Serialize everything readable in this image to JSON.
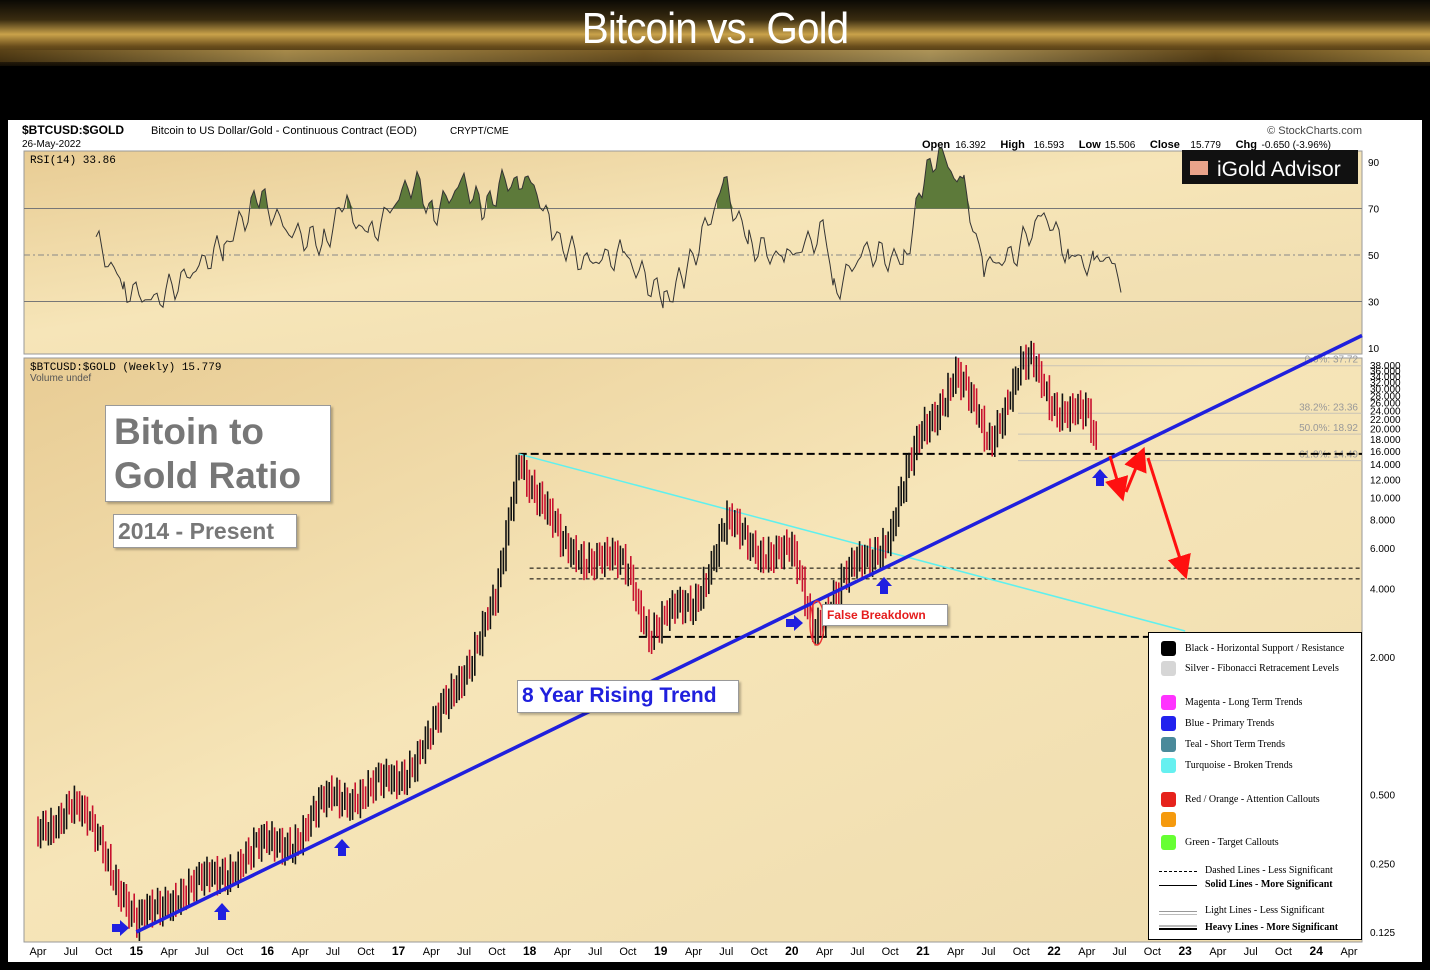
{
  "slide": {
    "title": "Bitcoin vs. Gold"
  },
  "header": {
    "symbol": "$BTCUSD:$GOLD",
    "description": "Bitcoin to US Dollar/Gold - Continuous Contract (EOD)",
    "exchange": "CRYPT/CME",
    "date": "26-May-2022",
    "source": "© StockCharts.com",
    "ohlc": [
      {
        "label": "Open",
        "value": "16.392"
      },
      {
        "label": "High",
        "value": "16.593"
      },
      {
        "label": "Low",
        "value": "15.506"
      },
      {
        "label": "Close",
        "value": "15.779"
      },
      {
        "label": "Chg",
        "value": "-0.650 (-3.96%)"
      }
    ],
    "logo": "iGold Advisor"
  },
  "rsi_panel": {
    "label": "RSI(14) 33.86",
    "ticks": [
      "90",
      "70",
      "50",
      "30",
      "10"
    ],
    "overbought_color": "#5d7a3a"
  },
  "price_panel": {
    "label": "$BTCUSD:$GOLD (Weekly) 15.779",
    "volume_label": "Volume undef",
    "y_ticks": [
      "38.000",
      "36.000",
      "34.000",
      "32.000",
      "30.000",
      "28.000",
      "26.000",
      "24.000",
      "22.000",
      "20.000",
      "18.000",
      "16.000",
      "14.000",
      "12.000",
      "10.000",
      "8.000",
      "6.000",
      "4.000",
      "2.000",
      "0.500",
      "0.250",
      "0.125"
    ],
    "fib_labels": [
      "0.0%: 37.72",
      "38.2%: 23.36",
      "50.0%: 18.92",
      "61.8%: 14.49"
    ]
  },
  "annotations": {
    "box_title_line1": "Bitoin to",
    "box_title_line2": "Gold Ratio",
    "box_period": "2014 - Present",
    "trend_label": "8 Year Rising Trend",
    "false_breakdown": "False Breakdown"
  },
  "x_axis": [
    "Apr",
    "Jul",
    "Oct",
    "15",
    "Apr",
    "Jul",
    "Oct",
    "16",
    "Apr",
    "Jul",
    "Oct",
    "17",
    "Apr",
    "Jul",
    "Oct",
    "18",
    "Apr",
    "Jul",
    "Oct",
    "19",
    "Apr",
    "Jul",
    "Oct",
    "20",
    "Apr",
    "Jul",
    "Oct",
    "21",
    "Apr",
    "Jul",
    "Oct",
    "22",
    "Apr",
    "Jul",
    "Oct",
    "23",
    "Apr",
    "Jul",
    "Oct",
    "24",
    "Apr"
  ],
  "legend": [
    {
      "label": "Black - Horizontal Support / Resistance",
      "color": "#000000"
    },
    {
      "label": "Silver - Fibonacci Retracement Levels",
      "color": "#d6d6d6"
    },
    {
      "label": "Magenta - Long Term Trends",
      "color": "#ff33ff"
    },
    {
      "label": "Blue - Primary Trends",
      "color": "#2222ee"
    },
    {
      "label": "Teal - Short Term Trends",
      "color": "#4a8a9a"
    },
    {
      "label": "Turquoise - Broken Trends",
      "color": "#66f0f0"
    },
    {
      "label": "Red / Orange - Attention Callouts",
      "color": "#e6221c"
    },
    {
      "label": "",
      "color": "#f59a0e"
    },
    {
      "label": "Green - Target Callouts",
      "color": "#66ff33"
    }
  ],
  "legend_lines": [
    {
      "label": "Dashed Lines - Less Significant"
    },
    {
      "label": "Solid Lines - More Significant"
    },
    {
      "label": "Light Lines - Less Significant"
    },
    {
      "label": "Heavy Lines - More Significant"
    }
  ],
  "chart_data": {
    "type": "line",
    "title": "$BTCUSD:$GOLD (Weekly) 15.779",
    "y_scale": "log",
    "ylim": [
      0.125,
      38
    ],
    "x_range": [
      "2014-04",
      "2024-04"
    ],
    "series": [
      {
        "name": "$BTCUSD:$GOLD",
        "x": [
          "2014-04",
          "2014-07",
          "2014-10",
          "2015-01",
          "2015-04",
          "2015-07",
          "2015-10",
          "2016-01",
          "2016-04",
          "2016-07",
          "2016-10",
          "2017-01",
          "2017-04",
          "2017-07",
          "2017-10",
          "2017-12",
          "2018-04",
          "2018-07",
          "2018-10",
          "2018-12",
          "2019-04",
          "2019-07",
          "2019-10",
          "2020-01",
          "2020-03",
          "2020-07",
          "2020-10",
          "2021-01",
          "2021-04",
          "2021-07",
          "2021-10",
          "2021-11",
          "2022-01",
          "2022-04",
          "2022-05"
        ],
        "y": [
          0.35,
          0.45,
          0.3,
          0.13,
          0.18,
          0.2,
          0.25,
          0.3,
          0.33,
          0.5,
          0.5,
          0.6,
          0.9,
          1.8,
          3.5,
          15.5,
          6.0,
          5.5,
          4.8,
          2.6,
          3.5,
          7.5,
          6.0,
          5.5,
          2.8,
          5.0,
          7.0,
          20.0,
          34.0,
          18.0,
          36.0,
          37.7,
          26.0,
          22.0,
          15.78
        ]
      }
    ],
    "rsi": {
      "name": "RSI(14)",
      "last": 33.86,
      "ylim": [
        10,
        90
      ]
    },
    "trendline": {
      "name": "8 Year Rising Trend",
      "from": [
        "2015-01",
        0.125
      ],
      "to": [
        "2024-04",
        48
      ]
    },
    "support_lines": [
      15.5,
      4.9,
      4.4,
      2.45
    ],
    "broken_trend": {
      "from": [
        "2017-12",
        15.5
      ],
      "to": [
        "2023-01",
        2.6
      ]
    }
  }
}
